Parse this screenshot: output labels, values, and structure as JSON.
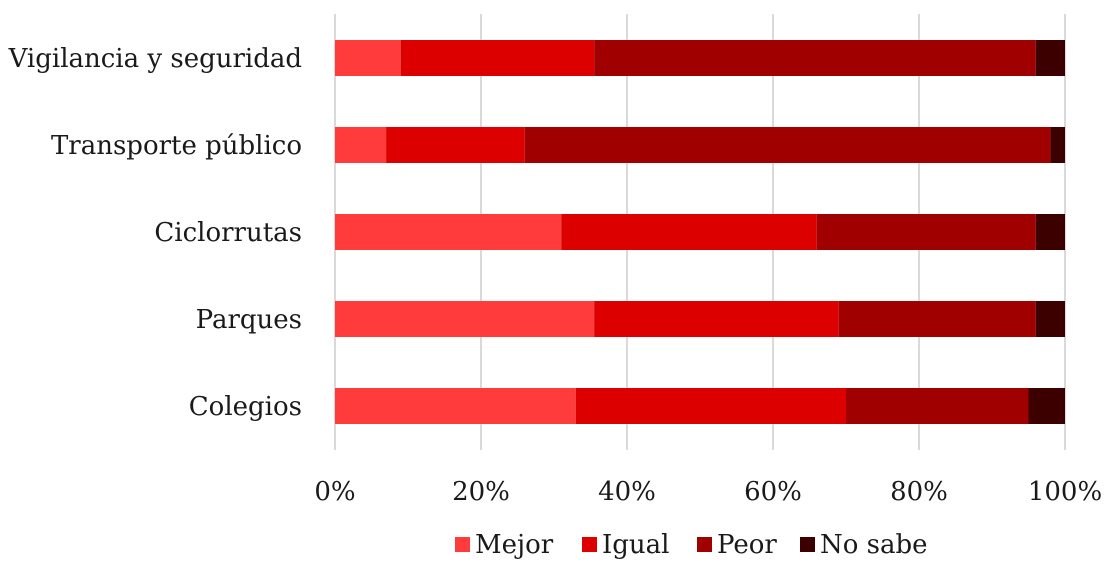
{
  "colors": {
    "Mejor": "#FF3B3B",
    "Igual": "#DD0000",
    "Peor": "#A00000",
    "No sabe": "#3C0000",
    "grid": "#d9d9d9"
  },
  "chart_data": {
    "type": "bar",
    "orientation": "horizontal",
    "stacked": "percent",
    "categories": [
      "Vigilancia y seguridad",
      "Transporte público",
      "Ciclorrutas",
      "Parques",
      "Colegios"
    ],
    "series": [
      {
        "name": "Mejor",
        "values": [
          9,
          7,
          31,
          35.5,
          33
        ]
      },
      {
        "name": "Igual",
        "values": [
          26.5,
          19,
          35,
          33.5,
          37
        ]
      },
      {
        "name": "Peor",
        "values": [
          60.5,
          72,
          30,
          27,
          25
        ]
      },
      {
        "name": "No sabe",
        "values": [
          4,
          2,
          4,
          4,
          5
        ]
      }
    ],
    "xlim": [
      0,
      100
    ],
    "xticks": [
      "0%",
      "20%",
      "40%",
      "60%",
      "80%",
      "100%"
    ],
    "grid": true,
    "legend": "bottom"
  }
}
